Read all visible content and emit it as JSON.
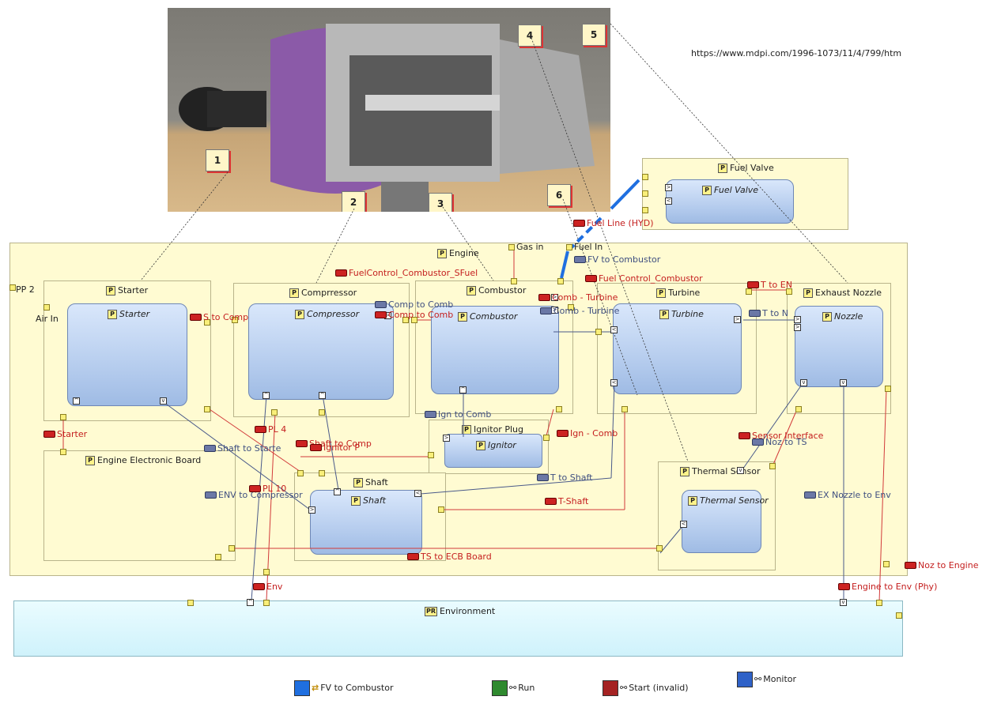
{
  "source_url": "https://www.mdpi.com/1996-1073/11/4/799/htm",
  "callouts": [
    "1",
    "2",
    "3",
    "4",
    "5",
    "6"
  ],
  "blocks": {
    "fuel_valve": {
      "title": "Fuel Valve",
      "inner": "Fuel Valve"
    },
    "engine": {
      "title": "Engine"
    },
    "starter": {
      "title": "Starter",
      "inner": "Starter"
    },
    "compressor": {
      "title": "Comprressor",
      "inner": "Compressor"
    },
    "combustor": {
      "title": "Combustor",
      "inner": "Combustor"
    },
    "turbine": {
      "title": "Turbine",
      "inner": "Turbine"
    },
    "nozzle": {
      "title": "Exhaust Nozzle",
      "inner": "Nozzle"
    },
    "ecb": {
      "title": "Engine Electronic Board"
    },
    "ignitor": {
      "title": "Ignitor Plug",
      "inner": "Ignitor"
    },
    "shaft": {
      "title": "Shaft",
      "inner": "Shaft"
    },
    "thermal": {
      "title": "Thermal Sensor",
      "inner": "Thermal Sensor"
    },
    "environment": {
      "title": "Environment"
    }
  },
  "port_labels": {
    "pp2": "PP 2",
    "air_in": "Air In",
    "gas_in": "Gas in",
    "fuel_in": "Fuel In"
  },
  "connections": {
    "fuel_line": "Fuel Line (HYD)",
    "fv_to_combustor": "FV to Combustor",
    "fuelcontrol_sfuel": "FuelControl_Combustor_SFuel",
    "fuel_control_combustor": "Fuel Control_Combustor",
    "t_to_en": "T to EN",
    "t_to_n": "T to N",
    "s_to_comp": "S to Comp",
    "comp_to_comb_1": "Comp to Comb",
    "comp_to_comb_2": "Comp to Comb",
    "comb_turbine_1": "Comb - Turbine",
    "comb_turbine_2": "Comb - Turbine",
    "ign_to_comb": "Ign to Comb",
    "starter": "Starter",
    "pl4": "PL 4",
    "shaft_to_comp": "Shaft to Comp",
    "ignitor_p": "Ignitor P",
    "ign_comb": "Ign - Comb",
    "shaft_to_starte": "Shaft to Starte",
    "sensor_interface": "Sensor Interface",
    "noz_to_ts": "Noz to TS",
    "t_to_shaft": "T to Shaft",
    "env_to_compressor": "ENV to Compressor",
    "pl10": "PL 10",
    "t_shaft": "T-Shaft",
    "ex_nozzle_to_env": "EX Nozzle to Env",
    "ts_to_ecb": "TS to ECB Board",
    "noz_to_engine": "Noz to Engine",
    "env": "Env",
    "engine_to_env": "Engine to Env (Phy)"
  },
  "legend": {
    "fv": "FV to Combustor",
    "run": "Run",
    "start": "Start (invalid)",
    "monitor": "Monitor",
    "colors": {
      "fv": "#1f6fe0",
      "run": "#2f8a2f",
      "start": "#a52323",
      "monitor": "#2f62c8"
    }
  },
  "colors": {
    "block_fill": "#fffbd2",
    "part_fill": "#b1c9ec",
    "env_fill": "#d9f6fc",
    "wire_red": "#d23a3a",
    "wire_blue": "#4a5a8a"
  }
}
